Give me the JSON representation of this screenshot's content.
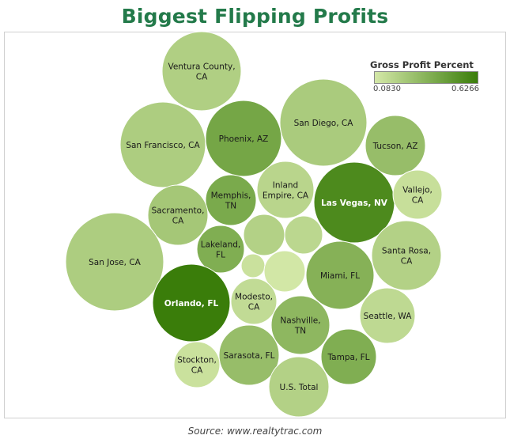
{
  "chart_data": {
    "type": "bubble",
    "title": "Biggest Flipping Profits",
    "source": "Source: www.realtytrac.com",
    "legend": {
      "title": "Gross Profit Percent",
      "min": 0.083,
      "max": 0.6266,
      "min_label": "0.0830",
      "max_label": "0.6266",
      "color_low": "#d4e8a8",
      "color_high": "#3a7d0a"
    },
    "bubbles": [
      {
        "id": "ventura-county",
        "label": "Ventura County, CA",
        "lines": [
          "Ventura County,",
          "CA"
        ],
        "value": 0.21
      },
      {
        "id": "san-francisco",
        "label": "San Francisco, CA",
        "lines": [
          "San Francisco, CA"
        ],
        "value": 0.22
      },
      {
        "id": "phoenix",
        "label": "Phoenix, AZ",
        "lines": [
          "Phoenix, AZ"
        ],
        "value": 0.42
      },
      {
        "id": "san-diego",
        "label": "San Diego, CA",
        "lines": [
          "San Diego, CA"
        ],
        "value": 0.23
      },
      {
        "id": "tucson",
        "label": "Tucson, AZ",
        "lines": [
          "Tucson, AZ"
        ],
        "value": 0.3
      },
      {
        "id": "inland-empire",
        "label": "Inland Empire, CA",
        "lines": [
          "Inland",
          "Empire, CA"
        ],
        "value": 0.18
      },
      {
        "id": "memphis",
        "label": "Memphis, TN",
        "lines": [
          "Memphis,",
          "TN"
        ],
        "value": 0.4
      },
      {
        "id": "las-vegas",
        "label": "Las Vegas, NV",
        "lines": [
          "Las Vegas, NV"
        ],
        "value": 0.56
      },
      {
        "id": "vallejo",
        "label": "Vallejo, CA",
        "lines": [
          "Vallejo,",
          "CA"
        ],
        "value": 0.13
      },
      {
        "id": "sacramento",
        "label": "Sacramento, CA",
        "lines": [
          "Sacramento,",
          "CA"
        ],
        "value": 0.25
      },
      {
        "id": "san-jose",
        "label": "San Jose, CA",
        "lines": [
          "San Jose, CA"
        ],
        "value": 0.22
      },
      {
        "id": "lakeland",
        "label": "Lakeland, FL",
        "lines": [
          "Lakeland,",
          "FL"
        ],
        "value": 0.38
      },
      {
        "id": "unlabeled-1",
        "label": "",
        "lines": [],
        "value": 0.2
      },
      {
        "id": "unlabeled-2",
        "label": "",
        "lines": [],
        "value": 0.17
      },
      {
        "id": "santa-rosa",
        "label": "Santa Rosa, CA",
        "lines": [
          "Santa Rosa,",
          "CA"
        ],
        "value": 0.2
      },
      {
        "id": "unlabeled-3",
        "label": "",
        "lines": [],
        "value": 0.12
      },
      {
        "id": "unlabeled-4",
        "label": "",
        "lines": [],
        "value": 0.09
      },
      {
        "id": "miami",
        "label": "Miami, FL",
        "lines": [
          "Miami, FL"
        ],
        "value": 0.36
      },
      {
        "id": "orlando",
        "label": "Orlando, FL",
        "lines": [
          "Orlando, FL"
        ],
        "value": 0.6266
      },
      {
        "id": "modesto",
        "label": "Modesto, CA",
        "lines": [
          "Modesto,",
          "CA"
        ],
        "value": 0.15
      },
      {
        "id": "nashville",
        "label": "Nashville, TN",
        "lines": [
          "Nashville,",
          "TN"
        ],
        "value": 0.33
      },
      {
        "id": "seattle",
        "label": "Seattle, WA",
        "lines": [
          "Seattle, WA"
        ],
        "value": 0.16
      },
      {
        "id": "sarasota",
        "label": "Sarasota, FL",
        "lines": [
          "Sarasota, FL"
        ],
        "value": 0.3
      },
      {
        "id": "stockton",
        "label": "Stockton, CA",
        "lines": [
          "Stockton,",
          "CA"
        ],
        "value": 0.12
      },
      {
        "id": "tampa",
        "label": "Tampa, FL",
        "lines": [
          "Tampa, FL"
        ],
        "value": 0.38
      },
      {
        "id": "us-total",
        "label": "U.S. Total",
        "lines": [
          "U.S. Total"
        ],
        "value": 0.2
      }
    ]
  }
}
